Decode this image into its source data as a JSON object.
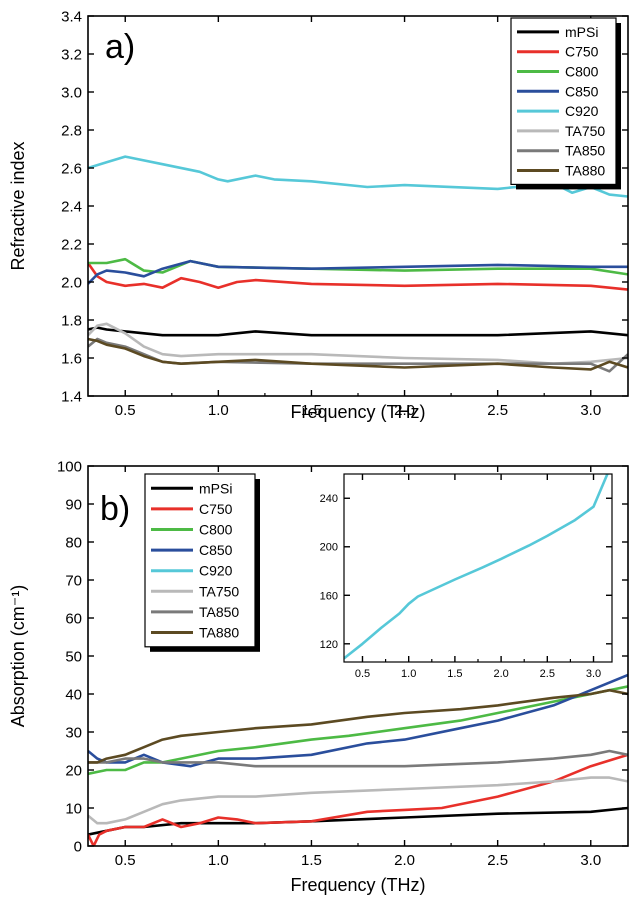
{
  "chart_data": [
    {
      "type": "line",
      "panel_label": "a)",
      "xlabel": "Frequency (THz)",
      "ylabel": "Refractive index",
      "xlim": [
        0.3,
        3.2
      ],
      "ylim": [
        1.4,
        3.4
      ],
      "x_ticks": [
        0.5,
        1.0,
        1.5,
        2.0,
        2.5,
        3.0
      ],
      "y_ticks": [
        1.4,
        1.6,
        1.8,
        2.0,
        2.2,
        2.4,
        2.6,
        2.8,
        3.0,
        3.2,
        3.4
      ],
      "x_tick_labels": [
        "0.5",
        "1.0",
        "1.5",
        "2.0",
        "2.5",
        "3.0"
      ],
      "y_tick_labels": [
        "1.4",
        "1.6",
        "1.8",
        "2.0",
        "2.2",
        "2.4",
        "2.6",
        "2.8",
        "3.0",
        "3.2",
        "3.4"
      ],
      "legend_position": "top-right",
      "series": [
        {
          "name": "mPSi",
          "color": "#000000",
          "x": [
            0.3,
            0.35,
            0.4,
            0.5,
            0.6,
            0.7,
            0.8,
            1.0,
            1.2,
            1.5,
            2.0,
            2.5,
            3.0,
            3.2
          ],
          "y": [
            1.75,
            1.76,
            1.75,
            1.74,
            1.73,
            1.72,
            1.72,
            1.72,
            1.74,
            1.72,
            1.72,
            1.72,
            1.74,
            1.72
          ]
        },
        {
          "name": "C750",
          "color": "#e8302a",
          "x": [
            0.3,
            0.35,
            0.4,
            0.5,
            0.6,
            0.7,
            0.8,
            0.9,
            1.0,
            1.1,
            1.2,
            1.5,
            2.0,
            2.5,
            3.0,
            3.2
          ],
          "y": [
            2.1,
            2.03,
            2.0,
            1.98,
            1.99,
            1.97,
            2.02,
            2.0,
            1.97,
            2.0,
            2.01,
            1.99,
            1.98,
            1.99,
            1.98,
            1.96
          ]
        },
        {
          "name": "C800",
          "color": "#4dba45",
          "x": [
            0.3,
            0.4,
            0.5,
            0.6,
            0.7,
            0.85,
            1.0,
            1.5,
            2.0,
            2.5,
            3.0,
            3.2
          ],
          "y": [
            2.1,
            2.1,
            2.12,
            2.06,
            2.05,
            2.11,
            2.08,
            2.07,
            2.06,
            2.07,
            2.07,
            2.04
          ]
        },
        {
          "name": "C850",
          "color": "#2a4e9c",
          "x": [
            0.3,
            0.35,
            0.4,
            0.5,
            0.6,
            0.7,
            0.85,
            1.0,
            1.5,
            2.0,
            2.5,
            3.0,
            3.2
          ],
          "y": [
            1.99,
            2.04,
            2.06,
            2.05,
            2.03,
            2.07,
            2.11,
            2.08,
            2.07,
            2.08,
            2.09,
            2.08,
            2.08
          ]
        },
        {
          "name": "C920",
          "color": "#56c8d8",
          "x": [
            0.3,
            0.4,
            0.5,
            0.55,
            0.7,
            0.9,
            1.0,
            1.05,
            1.2,
            1.3,
            1.5,
            1.8,
            2.0,
            2.5,
            2.8,
            2.9,
            3.0,
            3.1,
            3.2
          ],
          "y": [
            2.6,
            2.63,
            2.66,
            2.65,
            2.62,
            2.58,
            2.54,
            2.53,
            2.56,
            2.54,
            2.53,
            2.5,
            2.51,
            2.49,
            2.52,
            2.47,
            2.5,
            2.46,
            2.45
          ]
        },
        {
          "name": "TA750",
          "color": "#b9b9b9",
          "x": [
            0.3,
            0.35,
            0.4,
            0.5,
            0.6,
            0.7,
            0.8,
            1.0,
            1.5,
            2.0,
            2.5,
            2.8,
            3.0,
            3.2
          ],
          "y": [
            1.72,
            1.77,
            1.78,
            1.73,
            1.66,
            1.62,
            1.61,
            1.62,
            1.62,
            1.6,
            1.59,
            1.57,
            1.58,
            1.6
          ]
        },
        {
          "name": "TA850",
          "color": "#7a7a7a",
          "x": [
            0.3,
            0.35,
            0.4,
            0.5,
            0.6,
            0.7,
            0.8,
            1.0,
            1.5,
            2.0,
            2.5,
            3.0,
            3.1,
            3.2
          ],
          "y": [
            1.66,
            1.7,
            1.68,
            1.66,
            1.62,
            1.58,
            1.57,
            1.58,
            1.57,
            1.57,
            1.57,
            1.57,
            1.53,
            1.62
          ]
        },
        {
          "name": "TA880",
          "color": "#5c4a22",
          "x": [
            0.3,
            0.35,
            0.4,
            0.5,
            0.6,
            0.7,
            0.8,
            1.0,
            1.2,
            1.5,
            2.0,
            2.5,
            2.8,
            3.0,
            3.1,
            3.2
          ],
          "y": [
            1.7,
            1.69,
            1.67,
            1.65,
            1.61,
            1.58,
            1.57,
            1.58,
            1.59,
            1.57,
            1.55,
            1.57,
            1.55,
            1.54,
            1.58,
            1.55
          ]
        }
      ]
    },
    {
      "type": "line",
      "panel_label": "b)",
      "xlabel": "Frequency (THz)",
      "ylabel": "Absorption (cm⁻¹)",
      "xlim": [
        0.3,
        3.2
      ],
      "ylim": [
        0,
        100
      ],
      "x_ticks": [
        0.5,
        1.0,
        1.5,
        2.0,
        2.5,
        3.0
      ],
      "y_ticks": [
        0,
        10,
        20,
        30,
        40,
        50,
        60,
        70,
        80,
        90,
        100
      ],
      "x_tick_labels": [
        "0.5",
        "1.0",
        "1.5",
        "2.0",
        "2.5",
        "3.0"
      ],
      "y_tick_labels": [
        "0",
        "10",
        "20",
        "30",
        "40",
        "50",
        "60",
        "70",
        "80",
        "90",
        "100"
      ],
      "legend_position": "top-left",
      "series": [
        {
          "name": "mPSi",
          "color": "#000000",
          "x": [
            0.3,
            0.4,
            0.5,
            0.6,
            0.8,
            1.0,
            1.2,
            1.5,
            2.0,
            2.5,
            3.0,
            3.2
          ],
          "y": [
            3,
            4,
            5,
            5,
            6,
            6,
            6,
            6.5,
            7.5,
            8.5,
            9,
            10
          ]
        },
        {
          "name": "C750",
          "color": "#e8302a",
          "x": [
            0.3,
            0.33,
            0.36,
            0.4,
            0.5,
            0.6,
            0.7,
            0.8,
            0.9,
            1.0,
            1.1,
            1.2,
            1.5,
            1.8,
            2.0,
            2.2,
            2.5,
            2.8,
            3.0,
            3.2
          ],
          "y": [
            3,
            0,
            3,
            4,
            5,
            5,
            7,
            5,
            6,
            7.5,
            7,
            6,
            6.5,
            9,
            9.5,
            10,
            13,
            17,
            21,
            24
          ]
        },
        {
          "name": "C800",
          "color": "#4dba45",
          "x": [
            0.3,
            0.4,
            0.5,
            0.6,
            0.7,
            0.8,
            1.0,
            1.2,
            1.5,
            1.7,
            2.0,
            2.3,
            2.5,
            2.8,
            3.0,
            3.2
          ],
          "y": [
            19,
            20,
            20,
            22,
            22,
            23,
            25,
            26,
            28,
            29,
            31,
            33,
            35,
            38,
            40,
            42
          ]
        },
        {
          "name": "C850",
          "color": "#2a4e9c",
          "x": [
            0.3,
            0.35,
            0.4,
            0.5,
            0.6,
            0.7,
            0.85,
            1.0,
            1.2,
            1.5,
            1.8,
            2.0,
            2.3,
            2.5,
            2.8,
            3.0,
            3.2
          ],
          "y": [
            25,
            23,
            22,
            22,
            24,
            22,
            21,
            23,
            23,
            24,
            27,
            28,
            31,
            33,
            37,
            41,
            45
          ]
        },
        {
          "name": "TA750",
          "color": "#b9b9b9",
          "x": [
            0.3,
            0.35,
            0.4,
            0.5,
            0.6,
            0.7,
            0.8,
            1.0,
            1.2,
            1.5,
            2.0,
            2.5,
            2.8,
            3.0,
            3.1,
            3.2
          ],
          "y": [
            8,
            6,
            6,
            7,
            9,
            11,
            12,
            13,
            13,
            14,
            15,
            16,
            17,
            18,
            18,
            17
          ]
        },
        {
          "name": "TA850",
          "color": "#7a7a7a",
          "x": [
            0.3,
            0.4,
            0.5,
            0.6,
            0.7,
            0.8,
            1.0,
            1.2,
            1.5,
            2.0,
            2.5,
            2.8,
            3.0,
            3.1,
            3.2
          ],
          "y": [
            22,
            22,
            23,
            23,
            22,
            22,
            22,
            21,
            21,
            21,
            22,
            23,
            24,
            25,
            24
          ]
        },
        {
          "name": "TA880",
          "color": "#5c4a22",
          "x": [
            0.3,
            0.35,
            0.4,
            0.5,
            0.6,
            0.7,
            0.8,
            1.0,
            1.2,
            1.5,
            1.8,
            2.0,
            2.3,
            2.5,
            2.8,
            3.0,
            3.1,
            3.2
          ],
          "y": [
            22,
            22,
            23,
            24,
            26,
            28,
            29,
            30,
            31,
            32,
            34,
            35,
            36,
            37,
            39,
            40,
            41,
            40
          ]
        }
      ],
      "legend_entries": [
        "mPSi",
        "C750",
        "C800",
        "C850",
        "C920",
        "TA750",
        "TA850",
        "TA880"
      ],
      "legend_colors": [
        "#000000",
        "#e8302a",
        "#4dba45",
        "#2a4e9c",
        "#56c8d8",
        "#b9b9b9",
        "#7a7a7a",
        "#5c4a22"
      ],
      "inset": {
        "type": "line",
        "xlim": [
          0.3,
          3.2
        ],
        "ylim": [
          105,
          260
        ],
        "x_ticks": [
          0.5,
          1.0,
          1.5,
          2.0,
          2.5,
          3.0
        ],
        "y_ticks": [
          120,
          160,
          200,
          240
        ],
        "x_tick_labels": [
          "0.5",
          "1.0",
          "1.5",
          "2.0",
          "2.5",
          "3.0"
        ],
        "y_tick_labels": [
          "120",
          "160",
          "200",
          "240"
        ],
        "series": [
          {
            "name": "C920",
            "color": "#56c8d8",
            "x": [
              0.3,
              0.5,
              0.7,
              0.9,
              1.0,
              1.1,
              1.3,
              1.5,
              1.8,
              2.0,
              2.3,
              2.5,
              2.8,
              3.0,
              3.15
            ],
            "y": [
              108,
              120,
              133,
              145,
              153,
              159,
              166,
              173,
              183,
              190,
              201,
              209,
              222,
              233,
              260
            ]
          }
        ]
      }
    }
  ]
}
